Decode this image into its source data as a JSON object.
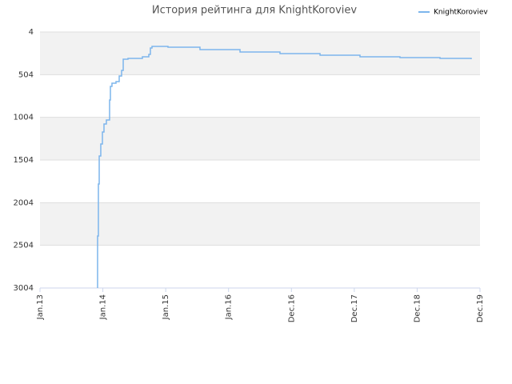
{
  "chart_data": {
    "type": "line",
    "title": "История рейтинга для KnightKoroviev",
    "x": [
      0.916,
      0.916,
      0.929,
      0.942,
      0.967,
      0.993,
      1.018,
      1.056,
      1.107,
      1.107,
      1.12,
      1.145,
      1.209,
      1.26,
      1.298,
      1.324,
      1.4,
      1.527,
      1.629,
      1.731,
      1.756,
      1.782,
      2.036,
      2.545,
      3.182,
      3.818,
      4.455,
      5.091,
      5.727,
      6.364,
      6.86
    ],
    "series": [
      {
        "name": "KnightKoroviev",
        "color": "#7cb5ec",
        "values": [
          3004,
          2395,
          1785,
          1457,
          1316,
          1176,
          1082,
          1035,
          1016,
          801,
          641,
          604,
          585,
          520,
          454,
          323,
          313,
          313,
          295,
          266,
          191,
          173,
          182,
          210,
          238,
          257,
          276,
          295,
          304,
          313,
          323
        ]
      }
    ],
    "xlim": [
      0,
      7
    ],
    "xticks": [
      {
        "value": 0,
        "label": "Jan.13"
      },
      {
        "value": 1,
        "label": "Jan.14"
      },
      {
        "value": 2,
        "label": "Jan.15"
      },
      {
        "value": 3,
        "label": "Jan.16"
      },
      {
        "value": 4,
        "label": "Dec.16"
      },
      {
        "value": 5,
        "label": "Dec.17"
      },
      {
        "value": 6,
        "label": "Dec.18"
      },
      {
        "value": 7,
        "label": "Dec.19"
      }
    ],
    "ylim": [
      3004,
      4
    ],
    "yticks": [
      4,
      504,
      1004,
      1504,
      2004,
      2504,
      3004
    ],
    "grid": true,
    "legend": "top-right",
    "step": true
  }
}
